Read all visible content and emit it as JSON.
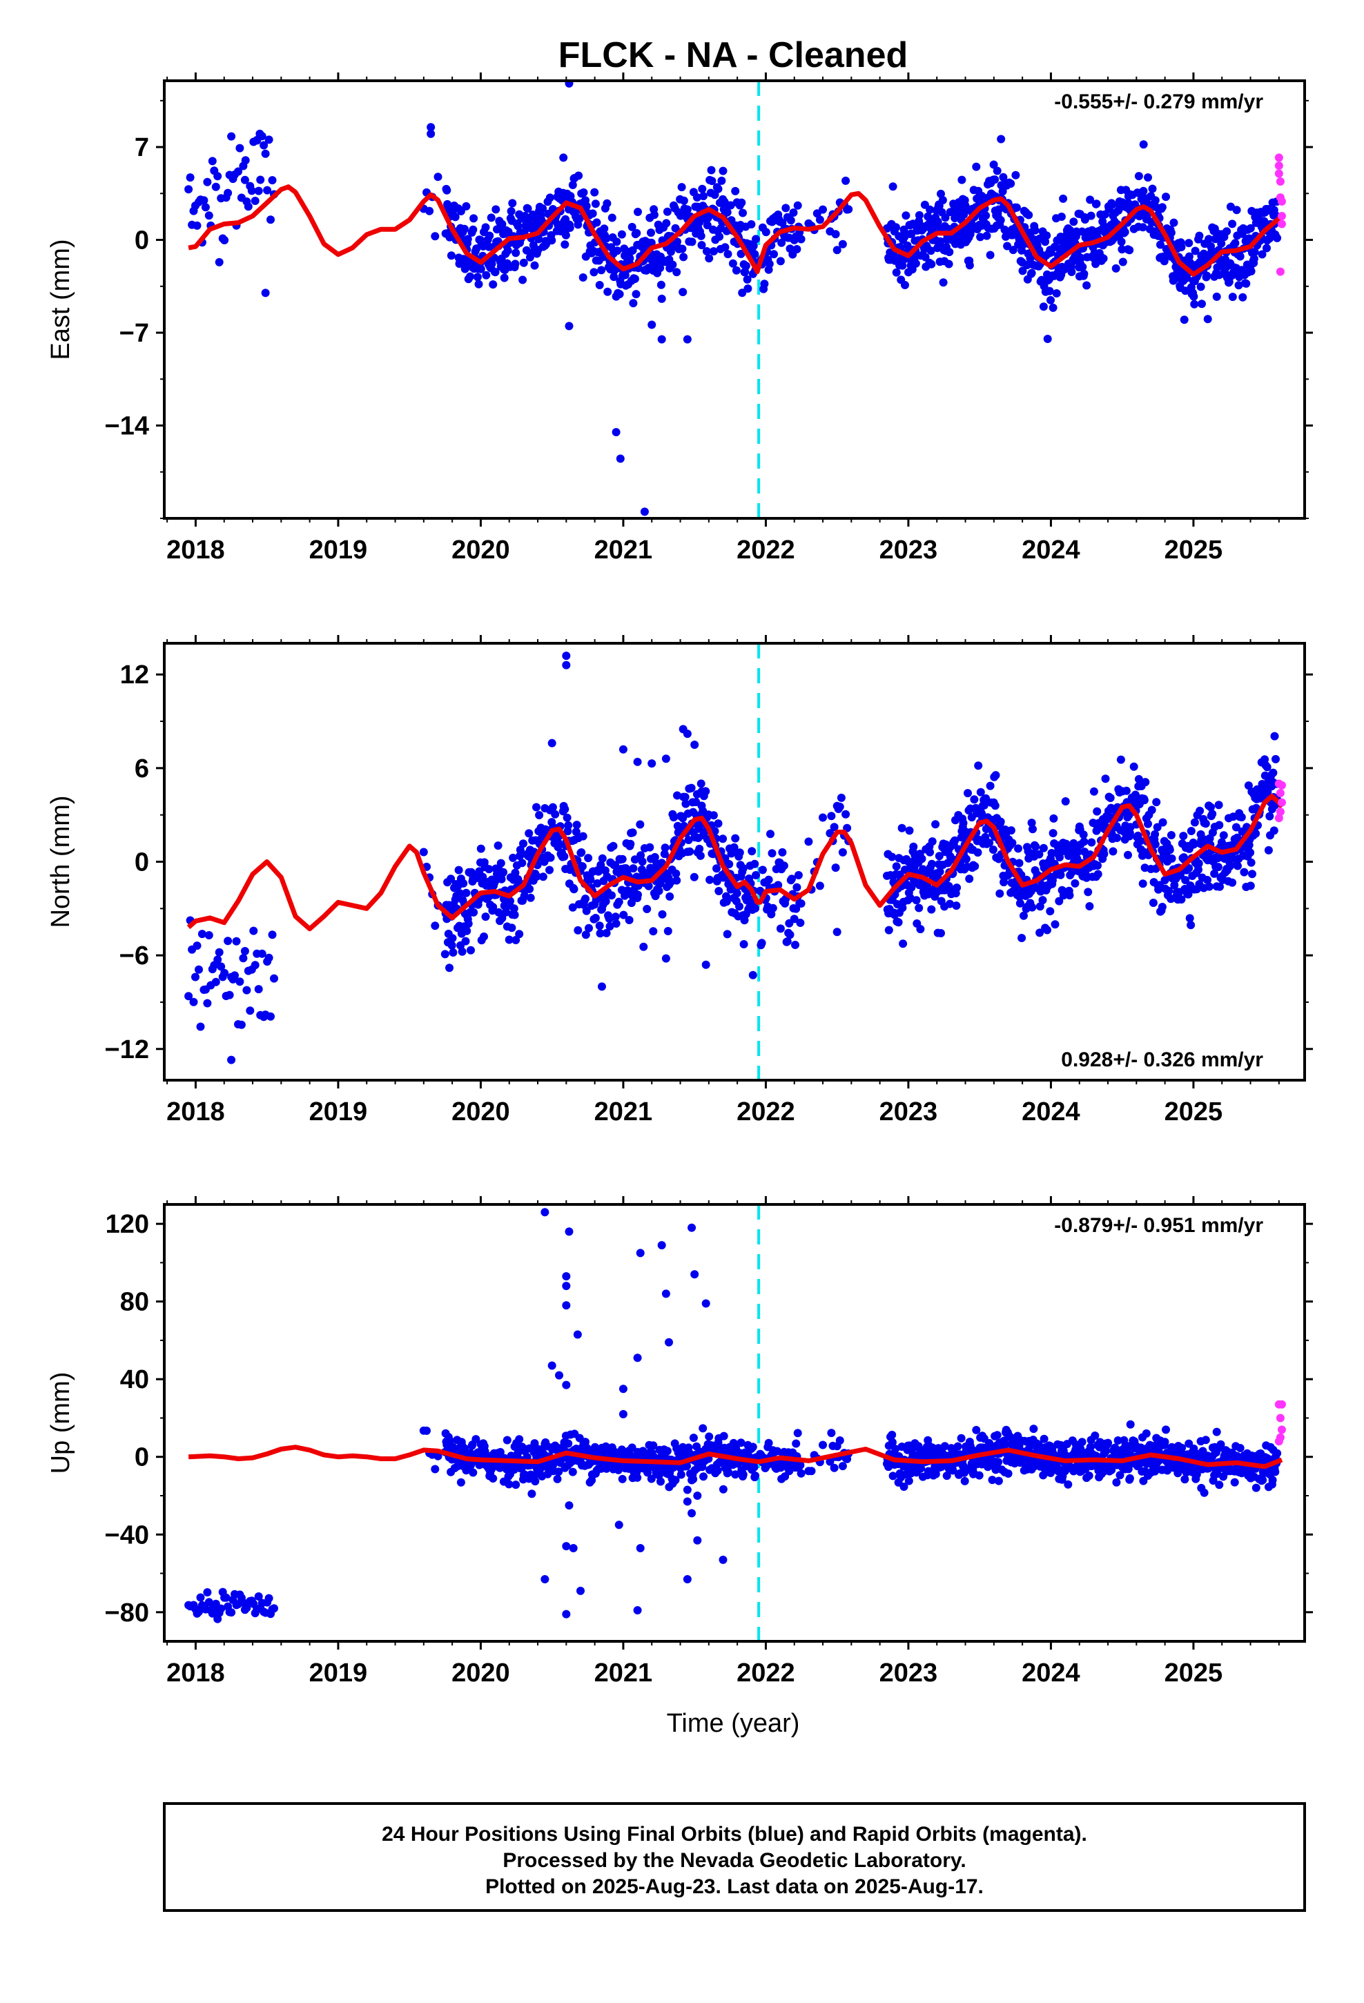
{
  "title": "FLCK  - NA - Cleaned",
  "xlabel": "Time (year)",
  "footer": {
    "line1": "24 Hour Positions Using Final Orbits (blue) and Rapid Orbits (magenta).",
    "line2": "Processed by the Nevada Geodetic Laboratory.",
    "line3": "Plotted on 2025-Aug-23. Last data on 2025-Aug-17."
  },
  "colors": {
    "final_orbits": "#0000ee",
    "rapid_orbits": "#ff33ff",
    "model": "#ee0000",
    "event_line": "#00e5ee"
  },
  "chart_data": [
    {
      "type": "scatter",
      "component": "east",
      "ylabel": "East (mm)",
      "xlim": [
        2017.78,
        2025.78
      ],
      "ylim": [
        -21,
        12
      ],
      "yticks": [
        7,
        0,
        -7,
        -14
      ],
      "ytick_labels": [
        "7",
        "0",
        "−7",
        "−14"
      ],
      "xticks": [
        2018,
        2019,
        2020,
        2021,
        2022,
        2023,
        2024,
        2025
      ],
      "xtick_labels": [
        "2018",
        "2019",
        "2020",
        "2021",
        "2022",
        "2023",
        "2024",
        "2025"
      ],
      "event_x": 2021.95,
      "rate_text": "-0.555+/- 0.279 mm/yr",
      "rate_position": "top-right",
      "model_line": {
        "name": "model",
        "x": [
          2017.95,
          2018.0,
          2018.1,
          2018.2,
          2018.3,
          2018.4,
          2018.5,
          2018.6,
          2018.65,
          2018.7,
          2018.8,
          2018.9,
          2019.0,
          2019.1,
          2019.2,
          2019.3,
          2019.4,
          2019.5,
          2019.6,
          2019.65,
          2019.7,
          2019.8,
          2019.9,
          2020.0,
          2020.1,
          2020.2,
          2020.3,
          2020.4,
          2020.5,
          2020.6,
          2020.7,
          2020.8,
          2020.9,
          2021.0,
          2021.1,
          2021.2,
          2021.3,
          2021.4,
          2021.5,
          2021.6,
          2021.7,
          2021.8,
          2021.9,
          2021.94,
          2021.96,
          2022.0,
          2022.1,
          2022.2,
          2022.3,
          2022.4,
          2022.5,
          2022.6,
          2022.65,
          2022.7,
          2022.8,
          2022.9,
          2023.0,
          2023.1,
          2023.2,
          2023.3,
          2023.4,
          2023.5,
          2023.6,
          2023.65,
          2023.7,
          2023.8,
          2023.9,
          2024.0,
          2024.1,
          2024.2,
          2024.3,
          2024.4,
          2024.5,
          2024.6,
          2024.65,
          2024.7,
          2024.8,
          2024.9,
          2025.0,
          2025.1,
          2025.2,
          2025.3,
          2025.4,
          2025.5,
          2025.6,
          2025.62
        ],
        "y": [
          -0.6,
          -0.5,
          0.8,
          1.2,
          1.3,
          1.8,
          2.8,
          3.8,
          4.0,
          3.6,
          1.8,
          -0.3,
          -1.1,
          -0.6,
          0.4,
          0.8,
          0.8,
          1.5,
          2.9,
          3.4,
          3.0,
          0.8,
          -1.0,
          -1.7,
          -0.8,
          0.1,
          0.2,
          0.5,
          1.7,
          2.8,
          2.4,
          0.4,
          -1.3,
          -2.2,
          -1.8,
          -0.6,
          -0.3,
          0.6,
          1.8,
          2.3,
          1.7,
          0.2,
          -1.6,
          -2.4,
          -1.7,
          -0.4,
          0.6,
          0.9,
          0.8,
          1.0,
          2.1,
          3.4,
          3.5,
          3.0,
          1.0,
          -0.7,
          -1.2,
          -0.1,
          0.5,
          0.5,
          1.3,
          2.4,
          3.0,
          3.1,
          2.6,
          0.6,
          -1.3,
          -2.0,
          -1.2,
          -0.4,
          -0.2,
          0.2,
          1.2,
          2.3,
          2.5,
          2.2,
          0.4,
          -1.7,
          -2.6,
          -1.9,
          -0.9,
          -0.8,
          -0.5,
          0.7,
          1.6,
          1.8
        ]
      },
      "rapid_points": {
        "x": [
          2025.6,
          2025.6,
          2025.61,
          2025.61,
          2025.62,
          2025.62,
          2025.62,
          2025.61,
          2025.6
        ],
        "y": [
          6.2,
          5.6,
          4.4,
          3.2,
          2.9,
          1.8,
          1.2,
          -2.4,
          5.0
        ]
      },
      "final_points": {
        "outliers_x": [
          2018.35,
          2018.43,
          2018.45,
          2018.49,
          2019.65,
          2019.65,
          2020.62,
          2020.62,
          2020.95,
          2020.98,
          2021.15,
          2021.27,
          2021.45,
          2020.58,
          2021.7,
          2023.65,
          2024.65,
          2021.2
        ],
        "outliers_y": [
          6.0,
          7.5,
          8.0,
          -4.0,
          8.5,
          8.0,
          11.8,
          -6.5,
          -14.5,
          -16.5,
          -20.5,
          -7.5,
          -7.5,
          6.2,
          5.2,
          7.6,
          7.2,
          -6.4
        ]
      }
    },
    {
      "type": "scatter",
      "component": "north",
      "ylabel": "North (mm)",
      "xlim": [
        2017.78,
        2025.78
      ],
      "ylim": [
        -14,
        14
      ],
      "yticks": [
        12,
        6,
        0,
        -6,
        -12
      ],
      "ytick_labels": [
        "12",
        "6",
        "0",
        "−6",
        "−12"
      ],
      "xticks": [
        2018,
        2019,
        2020,
        2021,
        2022,
        2023,
        2024,
        2025
      ],
      "xtick_labels": [
        "2018",
        "2019",
        "2020",
        "2021",
        "2022",
        "2023",
        "2024",
        "2025"
      ],
      "event_x": 2021.95,
      "rate_text": "0.928+/- 0.326 mm/yr",
      "rate_position": "bottom-right",
      "model_line": {
        "name": "model",
        "x": [
          2017.95,
          2018.0,
          2018.1,
          2018.2,
          2018.3,
          2018.4,
          2018.5,
          2018.6,
          2018.7,
          2018.8,
          2018.9,
          2019.0,
          2019.1,
          2019.2,
          2019.3,
          2019.4,
          2019.5,
          2019.55,
          2019.6,
          2019.7,
          2019.8,
          2019.9,
          2020.0,
          2020.1,
          2020.2,
          2020.3,
          2020.4,
          2020.5,
          2020.55,
          2020.6,
          2020.7,
          2020.8,
          2020.9,
          2021.0,
          2021.1,
          2021.2,
          2021.3,
          2021.4,
          2021.5,
          2021.55,
          2021.6,
          2021.7,
          2021.8,
          2021.85,
          2021.9,
          2021.94,
          2021.96,
          2022.0,
          2022.1,
          2022.2,
          2022.3,
          2022.4,
          2022.5,
          2022.55,
          2022.6,
          2022.7,
          2022.8,
          2022.9,
          2023.0,
          2023.1,
          2023.2,
          2023.3,
          2023.4,
          2023.5,
          2023.55,
          2023.6,
          2023.7,
          2023.8,
          2023.9,
          2024.0,
          2024.1,
          2024.2,
          2024.3,
          2024.4,
          2024.5,
          2024.55,
          2024.6,
          2024.7,
          2024.8,
          2024.9,
          2025.0,
          2025.1,
          2025.2,
          2025.3,
          2025.4,
          2025.5,
          2025.55,
          2025.6,
          2025.62
        ],
        "y": [
          -4.2,
          -3.8,
          -3.6,
          -3.9,
          -2.5,
          -0.8,
          0.0,
          -1.0,
          -3.5,
          -4.3,
          -3.5,
          -2.6,
          -2.8,
          -3.0,
          -2.0,
          -0.3,
          1.0,
          0.6,
          -0.7,
          -2.8,
          -3.6,
          -2.8,
          -2.0,
          -1.9,
          -2.2,
          -1.5,
          0.5,
          2.0,
          2.1,
          1.4,
          -1.2,
          -2.2,
          -1.5,
          -1.0,
          -1.3,
          -1.2,
          -0.3,
          1.5,
          2.7,
          2.8,
          2.1,
          -0.3,
          -1.6,
          -1.3,
          -1.8,
          -2.6,
          -2.6,
          -1.9,
          -1.8,
          -2.4,
          -1.8,
          0.5,
          1.9,
          1.9,
          1.2,
          -1.5,
          -2.8,
          -1.7,
          -0.8,
          -1.0,
          -1.5,
          -0.6,
          1.0,
          2.5,
          2.6,
          2.2,
          0.0,
          -1.5,
          -1.2,
          -0.5,
          -0.2,
          -0.3,
          0.3,
          2.0,
          3.5,
          3.6,
          3.0,
          0.8,
          -0.8,
          -0.5,
          0.3,
          1.0,
          0.6,
          0.8,
          2.0,
          3.8,
          4.2,
          3.8,
          3.5
        ]
      },
      "rapid_points": {
        "x": [
          2025.6,
          2025.61,
          2025.62,
          2025.61,
          2025.6,
          2025.62
        ],
        "y": [
          5.0,
          4.4,
          3.8,
          3.2,
          2.8,
          4.9
        ]
      },
      "final_points": {
        "outliers_x": [
          2018.25,
          2020.6,
          2020.6,
          2020.5,
          2021.0,
          2021.1,
          2021.2,
          2021.3,
          2021.42,
          2021.45,
          2021.5,
          2020.85,
          2021.3,
          2021.58,
          2022.5,
          2019.78,
          2021.55,
          2020.2
        ],
        "outliers_y": [
          -12.7,
          13.2,
          12.6,
          7.6,
          7.2,
          6.4,
          6.3,
          6.6,
          8.5,
          8.2,
          7.5,
          -8.0,
          -6.2,
          -6.6,
          -4.5,
          -6.8,
          4.5,
          -5.0
        ]
      }
    },
    {
      "type": "scatter",
      "component": "up",
      "ylabel": "Up (mm)",
      "xlim": [
        2017.78,
        2025.78
      ],
      "ylim": [
        -95,
        130
      ],
      "yticks": [
        120,
        80,
        40,
        0,
        -40,
        -80
      ],
      "ytick_labels": [
        "120",
        "80",
        "40",
        "0",
        "−40",
        "−80"
      ],
      "xticks": [
        2018,
        2019,
        2020,
        2021,
        2022,
        2023,
        2024,
        2025
      ],
      "xtick_labels": [
        "2018",
        "2019",
        "2020",
        "2021",
        "2022",
        "2023",
        "2024",
        "2025"
      ],
      "event_x": 2021.95,
      "rate_text": "-0.879+/- 0.951 mm/yr",
      "rate_position": "top-right",
      "model_line": {
        "name": "model",
        "x": [
          2017.95,
          2018.1,
          2018.2,
          2018.3,
          2018.4,
          2018.5,
          2018.6,
          2018.7,
          2018.8,
          2018.9,
          2019.0,
          2019.1,
          2019.2,
          2019.3,
          2019.4,
          2019.5,
          2019.6,
          2019.7,
          2019.8,
          2019.9,
          2020.0,
          2020.2,
          2020.4,
          2020.6,
          2020.8,
          2021.0,
          2021.2,
          2021.4,
          2021.6,
          2021.8,
          2021.95,
          2022.1,
          2022.3,
          2022.5,
          2022.7,
          2022.9,
          2023.1,
          2023.3,
          2023.5,
          2023.7,
          2023.9,
          2024.1,
          2024.3,
          2024.5,
          2024.7,
          2024.9,
          2025.1,
          2025.3,
          2025.5,
          2025.62
        ],
        "y": [
          0.0,
          0.5,
          0.0,
          -1.0,
          -0.5,
          1.5,
          4.0,
          5.0,
          3.5,
          1.0,
          0.0,
          0.5,
          0.0,
          -1.0,
          -1.0,
          1.0,
          3.5,
          3.0,
          1.0,
          -1.0,
          -1.5,
          -2.0,
          -2.5,
          2.0,
          -0.5,
          -2.0,
          -2.5,
          -3.0,
          1.5,
          -1.0,
          -2.5,
          -0.5,
          -2.0,
          1.0,
          4.0,
          -1.5,
          -2.5,
          -2.0,
          1.0,
          3.5,
          0.5,
          -2.0,
          -1.5,
          -2.0,
          1.0,
          -1.0,
          -4.0,
          -3.0,
          -5.0,
          -1.5
        ]
      },
      "rapid_points": {
        "x": [
          2025.6,
          2025.61,
          2025.62,
          2025.61,
          2025.6,
          2025.62
        ],
        "y": [
          27,
          20,
          14,
          10,
          8,
          27
        ]
      },
      "final_points": {
        "outliers_x": [
          2020.45,
          2020.62,
          2020.6,
          2020.6,
          2020.6,
          2020.68,
          2020.5,
          2020.55,
          2020.6,
          2021.0,
          2021.12,
          2021.1,
          2021.27,
          2021.3,
          2021.32,
          2021.48,
          2021.5,
          2021.58,
          2020.45,
          2020.6,
          2020.62,
          2020.65,
          2020.7,
          2020.97,
          2021.12,
          2021.45,
          2021.48,
          2021.52,
          2021.45,
          2021.7,
          2021.45,
          2021.52,
          2020.6,
          2021.48,
          2021.1,
          2021.0
        ],
        "outliers_y": [
          126,
          116,
          93,
          88,
          78,
          63,
          47,
          42,
          37,
          22,
          105,
          51,
          109,
          84,
          59,
          118,
          94,
          79,
          -63,
          -46,
          -25,
          -47,
          -69,
          -35,
          -47,
          -63,
          -29,
          -43,
          -23,
          -53,
          -17,
          -20,
          -81,
          -12,
          -79,
          35
        ]
      }
    }
  ]
}
